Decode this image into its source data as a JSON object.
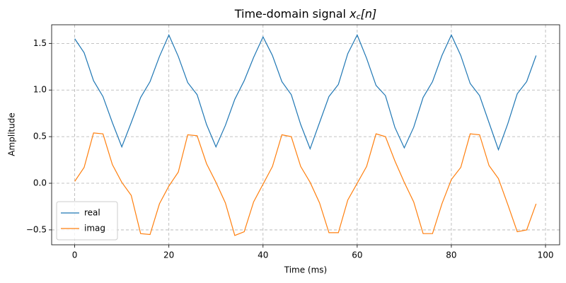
{
  "chart_data": {
    "type": "line",
    "title": "Time-domain signal x_c[n]",
    "xlabel": "Time (ms)",
    "ylabel": "Amplitude",
    "x": [
      0,
      2,
      4,
      6,
      8,
      10,
      12,
      14,
      16,
      18,
      20,
      22,
      24,
      26,
      28,
      30,
      32,
      34,
      36,
      38,
      40,
      42,
      44,
      46,
      48,
      50,
      52,
      54,
      56,
      58,
      60,
      62,
      64,
      66,
      68,
      70,
      72,
      74,
      76,
      78,
      80,
      82,
      84,
      86,
      88,
      90,
      92,
      94,
      96,
      98
    ],
    "series": [
      {
        "name": "real",
        "color": "#1f77b4",
        "values": [
          1.55,
          1.4,
          1.1,
          0.93,
          0.65,
          0.39,
          0.65,
          0.92,
          1.09,
          1.36,
          1.59,
          1.36,
          1.08,
          0.95,
          0.63,
          0.39,
          0.62,
          0.9,
          1.1,
          1.35,
          1.57,
          1.37,
          1.09,
          0.95,
          0.63,
          0.37,
          0.65,
          0.93,
          1.06,
          1.39,
          1.59,
          1.34,
          1.05,
          0.94,
          0.6,
          0.38,
          0.6,
          0.92,
          1.09,
          1.37,
          1.59,
          1.37,
          1.07,
          0.94,
          0.65,
          0.36,
          0.64,
          0.96,
          1.09,
          1.37
        ]
      },
      {
        "name": "imag",
        "color": "#ff7f0e",
        "values": [
          0.02,
          0.17,
          0.54,
          0.53,
          0.2,
          0.01,
          -0.13,
          -0.54,
          -0.55,
          -0.22,
          -0.03,
          0.12,
          0.52,
          0.51,
          0.21,
          0.01,
          -0.21,
          -0.56,
          -0.52,
          -0.2,
          -0.01,
          0.18,
          0.52,
          0.5,
          0.18,
          0.01,
          -0.21,
          -0.53,
          -0.53,
          -0.18,
          0.0,
          0.18,
          0.53,
          0.5,
          0.24,
          0.01,
          -0.2,
          -0.54,
          -0.54,
          -0.22,
          0.04,
          0.17,
          0.53,
          0.52,
          0.19,
          0.05,
          -0.23,
          -0.52,
          -0.5,
          -0.22
        ]
      }
    ],
    "xlim": [
      -4.9,
      103
    ],
    "ylim": [
      -0.66,
      1.7
    ],
    "xticks": [
      0,
      20,
      40,
      60,
      80,
      100
    ],
    "yticks": [
      {
        "value": -0.5,
        "label": "−0.5"
      },
      {
        "value": 0,
        "label": "0.0"
      },
      0.5,
      {
        "value": 1,
        "label": "1.0"
      },
      1.5
    ],
    "grid": true,
    "legend": "lower left"
  }
}
